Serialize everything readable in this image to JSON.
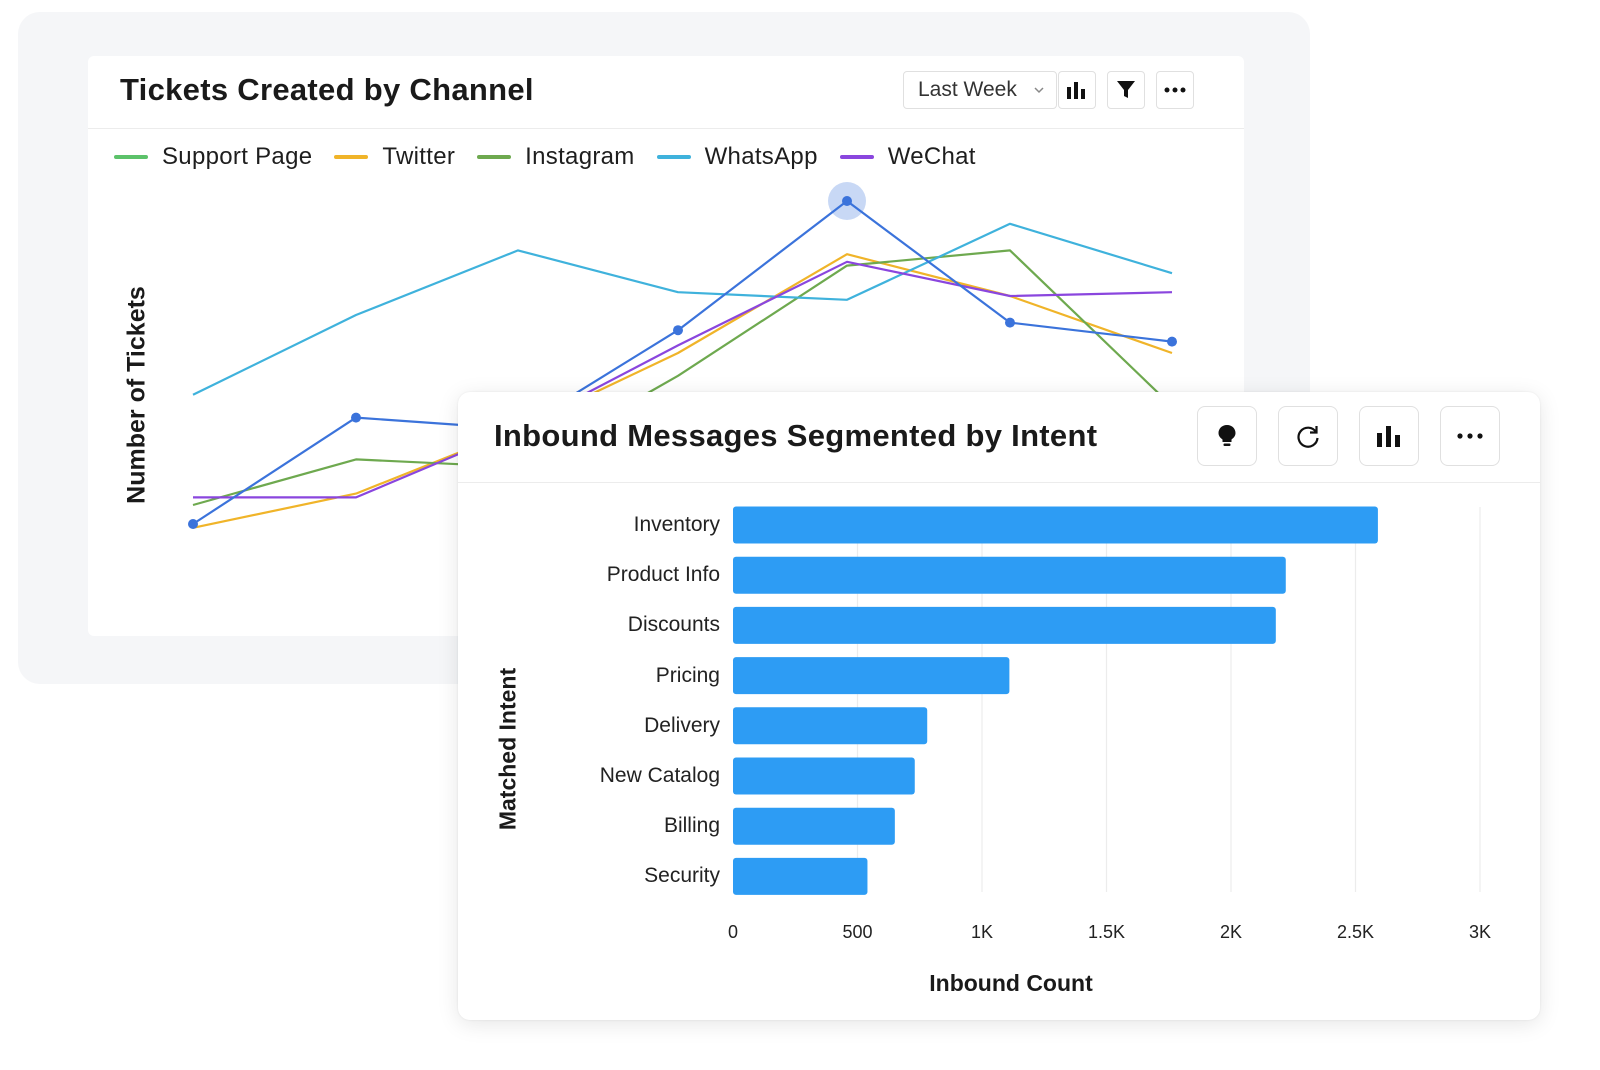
{
  "colors": {
    "support_page": "#5cc26a",
    "twitter": "#f0b429",
    "instagram": "#6ea94f",
    "whatsapp": "#3fb2dc",
    "wechat": "#8a46de",
    "highlight": "#3b73db",
    "bar": "#2d9cf4"
  },
  "tickets_card": {
    "title": "Tickets Created by Channel",
    "dropdown_label": "Last Week",
    "icons": [
      "bar-chart-icon",
      "filter-icon",
      "more-icon"
    ]
  },
  "intent_card": {
    "title": "Inbound Messages Segmented by Intent",
    "icons": [
      "lightbulb-icon",
      "refresh-icon",
      "bar-chart-icon",
      "more-icon"
    ]
  },
  "chart_data": [
    {
      "type": "line",
      "title": "Tickets Created by Channel",
      "xlabel": "",
      "ylabel": "Number of Tickets",
      "legend": "top-left",
      "grid": false,
      "x": [
        1,
        2,
        3,
        4,
        5,
        6,
        7
      ],
      "ylim": [
        0,
        100
      ],
      "series": [
        {
          "name": "Support Page",
          "color": "#5cc26a",
          "values": [
            null,
            null,
            null,
            null,
            null,
            null,
            null
          ]
        },
        {
          "name": "Twitter",
          "color": "#f0b429",
          "values": [
            19,
            28,
            45,
            65,
            91,
            80,
            65
          ]
        },
        {
          "name": "Instagram",
          "color": "#6ea94f",
          "values": [
            25,
            37,
            35,
            59,
            88,
            92,
            51
          ]
        },
        {
          "name": "WhatsApp",
          "color": "#3fb2dc",
          "values": [
            54,
            75,
            92,
            81,
            79,
            99,
            86
          ]
        },
        {
          "name": "WeChat",
          "color": "#8a46de",
          "values": [
            27,
            27,
            45,
            67,
            89,
            80,
            81
          ]
        },
        {
          "name": "",
          "color": "#3b73db",
          "values": [
            20,
            48,
            45,
            71,
            105,
            73,
            68
          ],
          "highlight_index": 4
        }
      ]
    },
    {
      "type": "bar",
      "orientation": "horizontal",
      "title": "Inbound Messages Segmented by Intent",
      "xlabel": "Inbound Count",
      "ylabel": "Matched Intent",
      "categories": [
        "Inventory",
        "Product Info",
        "Discounts",
        "Pricing",
        "Delivery",
        "New Catalog",
        "Billing",
        "Security"
      ],
      "values": [
        2590,
        2220,
        2180,
        1110,
        780,
        730,
        650,
        540
      ],
      "xlim": [
        0,
        3000
      ],
      "ticks": [
        0,
        500,
        1000,
        1500,
        2000,
        2500,
        3000
      ],
      "tick_labels": [
        "0",
        "500",
        "1K",
        "1.5K",
        "2K",
        "2.5K",
        "3K"
      ],
      "grid": true
    }
  ]
}
